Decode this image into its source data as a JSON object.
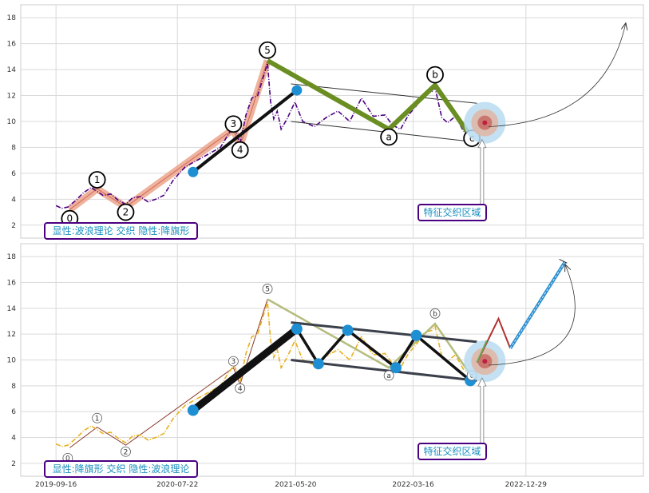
{
  "x_axis": {
    "ticks": [
      {
        "label": "2019-09-16",
        "x": 0
      },
      {
        "label": "2020-07-22",
        "x": 310
      },
      {
        "label": "2021-05-20",
        "x": 612
      },
      {
        "label": "2022-03-16",
        "x": 912
      },
      {
        "label": "2022-12-29",
        "x": 1200
      }
    ],
    "range": [
      -90,
      1500
    ]
  },
  "colors": {
    "price_top": "#4b0082",
    "price_bottom": "#e8b020",
    "impulse_band": "#eba58c",
    "impulse_line": "#c0392b",
    "correction_top": "#6b8e23",
    "correction_bottom": "#b5bc7c",
    "channel": "#333333",
    "dot": "#1f8fd4",
    "projection": "#2e8fd0",
    "projection_wave": "#b03030",
    "box_border": "#4b0082",
    "box_text": "#1a8fbf",
    "target_outer": "#b8dcf0",
    "target_mid": "#e0b8a8",
    "target_inner": "#c87068",
    "target_core": "#c02040"
  },
  "panels": [
    {
      "id": "top",
      "box_text": "显性:波浪理论 交织 隐性:降旗形",
      "zone_text": "特征交织区域",
      "y_ticks": [
        2,
        4,
        6,
        8,
        10,
        12,
        14,
        16,
        18
      ],
      "y_range": [
        1,
        19
      ],
      "wave_labels": [
        {
          "text": "0",
          "x": 35,
          "y": 2.5
        },
        {
          "text": "1",
          "x": 105,
          "y": 5.5
        },
        {
          "text": "2",
          "x": 178,
          "y": 3.0
        },
        {
          "text": "3",
          "x": 453,
          "y": 9.8
        },
        {
          "text": "4",
          "x": 470,
          "y": 7.8
        },
        {
          "text": "5",
          "x": 540,
          "y": 15.5
        },
        {
          "text": "a",
          "x": 850,
          "y": 8.8
        },
        {
          "text": "b",
          "x": 968,
          "y": 13.6
        },
        {
          "text": "c",
          "x": 1062,
          "y": 8.7
        }
      ]
    },
    {
      "id": "bottom",
      "box_text": "显性:降旗形 交织 隐性:波浪理论",
      "zone_text": "特征交织区域",
      "y_ticks": [
        2,
        4,
        6,
        8,
        10,
        12,
        14,
        16,
        18
      ],
      "y_range": [
        1,
        19
      ],
      "wave_labels": [
        {
          "text": "0",
          "x": 30,
          "y": 2.4
        },
        {
          "text": "1",
          "x": 105,
          "y": 5.5
        },
        {
          "text": "2",
          "x": 178,
          "y": 2.9
        },
        {
          "text": "3",
          "x": 453,
          "y": 9.9
        },
        {
          "text": "4",
          "x": 470,
          "y": 7.8
        },
        {
          "text": "5",
          "x": 540,
          "y": 15.5
        },
        {
          "text": "a",
          "x": 850,
          "y": 8.8
        },
        {
          "text": "b",
          "x": 968,
          "y": 13.6
        },
        {
          "text": "c",
          "x": 1062,
          "y": 8.8
        }
      ]
    }
  ],
  "chart_data": [
    {
      "type": "line",
      "panel": "top",
      "ylim": [
        1,
        19
      ],
      "xlim": [
        -90,
        1500
      ],
      "xticks": [
        "2019-09-16",
        "2020-07-22",
        "2021-05-20",
        "2022-03-16",
        "2022-12-29"
      ],
      "yticks": [
        2,
        4,
        6,
        8,
        10,
        12,
        14,
        16,
        18
      ],
      "grid": true,
      "series": [
        {
          "role": "price",
          "x": [
            0,
            15,
            30,
            50,
            70,
            90,
            105,
            120,
            140,
            160,
            178,
            195,
            215,
            235,
            255,
            275,
            300,
            330,
            360,
            390,
            420,
            440,
            455,
            470,
            485,
            500,
            515,
            530,
            540,
            548,
            556,
            565,
            575,
            590,
            610,
            630,
            660,
            690,
            720,
            750,
            780,
            810,
            840,
            860,
            880,
            900,
            920,
            940,
            960,
            968,
            985,
            1000,
            1020,
            1040,
            1060,
            1075
          ],
          "y": [
            3.5,
            3.3,
            3.4,
            3.9,
            4.5,
            4.9,
            4.6,
            4.3,
            4.4,
            3.9,
            3.6,
            4.1,
            4.2,
            3.8,
            4.0,
            4.3,
            5.5,
            6.5,
            7.0,
            7.5,
            8.0,
            9.0,
            9.6,
            8.3,
            10.5,
            11.8,
            12.0,
            13.5,
            14.5,
            11.5,
            10.2,
            10.8,
            9.4,
            10.2,
            11.5,
            10.0,
            9.6,
            10.3,
            10.8,
            10.0,
            11.8,
            10.4,
            10.5,
            9.7,
            9.4,
            10.5,
            11.2,
            12.1,
            12.3,
            12.6,
            10.3,
            9.9,
            10.4,
            9.3,
            8.8,
            8.7
          ]
        },
        {
          "role": "impulse_waves",
          "x": [
            35,
            105,
            178,
            453,
            470,
            540
          ],
          "y": [
            3.2,
            4.8,
            3.4,
            9.4,
            8.1,
            14.7
          ]
        },
        {
          "role": "correction_abc",
          "x": [
            540,
            850,
            968,
            1062
          ],
          "y": [
            14.7,
            9.4,
            12.8,
            8.7
          ]
        },
        {
          "role": "dots",
          "x": [
            350,
            615
          ],
          "y": [
            6.1,
            12.4
          ]
        }
      ]
    },
    {
      "type": "line",
      "panel": "bottom",
      "ylim": [
        1,
        19
      ],
      "xlim": [
        -90,
        1500
      ],
      "xticks": [
        "2019-09-16",
        "2020-07-22",
        "2021-05-20",
        "2022-03-16",
        "2022-12-29"
      ],
      "yticks": [
        2,
        4,
        6,
        8,
        10,
        12,
        14,
        16,
        18
      ],
      "grid": true,
      "series": [
        {
          "role": "price",
          "x": [
            0,
            15,
            30,
            50,
            70,
            90,
            105,
            120,
            140,
            160,
            178,
            195,
            215,
            235,
            255,
            275,
            300,
            330,
            360,
            390,
            420,
            440,
            455,
            470,
            485,
            500,
            515,
            530,
            540,
            548,
            556,
            565,
            575,
            590,
            610,
            630,
            660,
            690,
            720,
            750,
            780,
            810,
            840,
            860,
            880,
            900,
            920,
            940,
            960,
            968,
            985,
            1000,
            1020,
            1040,
            1060,
            1075
          ],
          "y": [
            3.5,
            3.3,
            3.4,
            3.9,
            4.5,
            4.9,
            4.6,
            4.3,
            4.4,
            3.9,
            3.6,
            4.1,
            4.2,
            3.8,
            4.0,
            4.3,
            5.5,
            6.5,
            7.0,
            7.5,
            8.0,
            9.0,
            9.6,
            8.3,
            10.5,
            11.8,
            12.0,
            13.5,
            14.5,
            11.5,
            10.2,
            10.8,
            9.4,
            10.2,
            11.5,
            10.0,
            9.6,
            10.3,
            10.8,
            10.0,
            11.8,
            10.4,
            10.5,
            9.7,
            9.4,
            10.5,
            11.2,
            12.1,
            12.3,
            12.6,
            10.3,
            9.9,
            10.4,
            9.3,
            8.8,
            8.7
          ]
        },
        {
          "role": "flag_zigzag",
          "x": [
            350,
            615,
            670,
            745,
            868,
            920,
            1058
          ],
          "y": [
            6.1,
            12.4,
            9.7,
            12.3,
            9.4,
            11.9,
            8.4
          ]
        },
        {
          "role": "projection",
          "x": [
            1075,
            1130,
            1160,
            1200,
            1300
          ],
          "y": [
            9.8,
            13.2,
            10.9,
            12.0,
            17.6
          ]
        }
      ]
    }
  ]
}
